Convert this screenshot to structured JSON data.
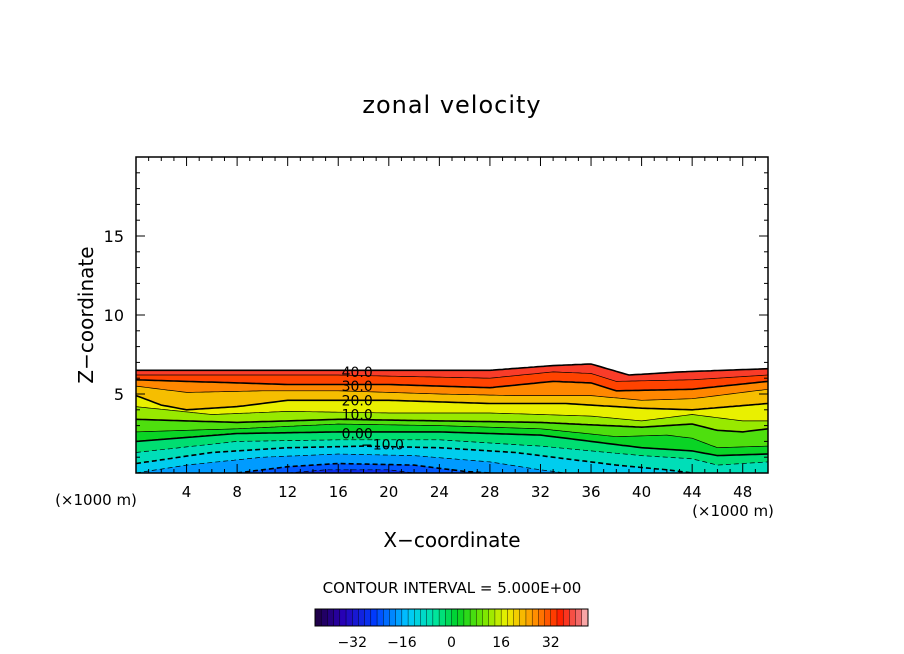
{
  "chart_data": {
    "type": "heatmap",
    "title": "zonal velocity",
    "xlabel": "X−coordinate",
    "ylabel": "Z−coordinate",
    "x_unit_left": "(×1000 m)",
    "x_unit_right": "(×1000 m)",
    "xlim": [
      0,
      50
    ],
    "ylim": [
      0,
      20
    ],
    "x_ticks": [
      4,
      8,
      12,
      16,
      20,
      24,
      28,
      32,
      36,
      40,
      44,
      48
    ],
    "y_ticks": [
      5,
      10,
      15
    ],
    "contour_interval_text": "CONTOUR INTERVAL = 5.000E+00",
    "contour_labels": [
      {
        "text": "40.0",
        "x": 17.5,
        "z": 6.4
      },
      {
        "text": "30.0",
        "x": 17.5,
        "z": 5.5
      },
      {
        "text": "20.0",
        "x": 17.5,
        "z": 4.6
      },
      {
        "text": "10.0",
        "x": 17.5,
        "z": 3.7
      },
      {
        "text": "0.00",
        "x": 17.5,
        "z": 2.5
      },
      {
        "text": "−10.0",
        "x": 19.5,
        "z": 1.8
      }
    ],
    "colorbar": {
      "ticks": [
        "−32",
        "−16",
        "0",
        "16",
        "32"
      ],
      "tick_values": [
        -32,
        -16,
        0,
        16,
        32
      ],
      "range": [
        -44,
        44
      ]
    }
  }
}
